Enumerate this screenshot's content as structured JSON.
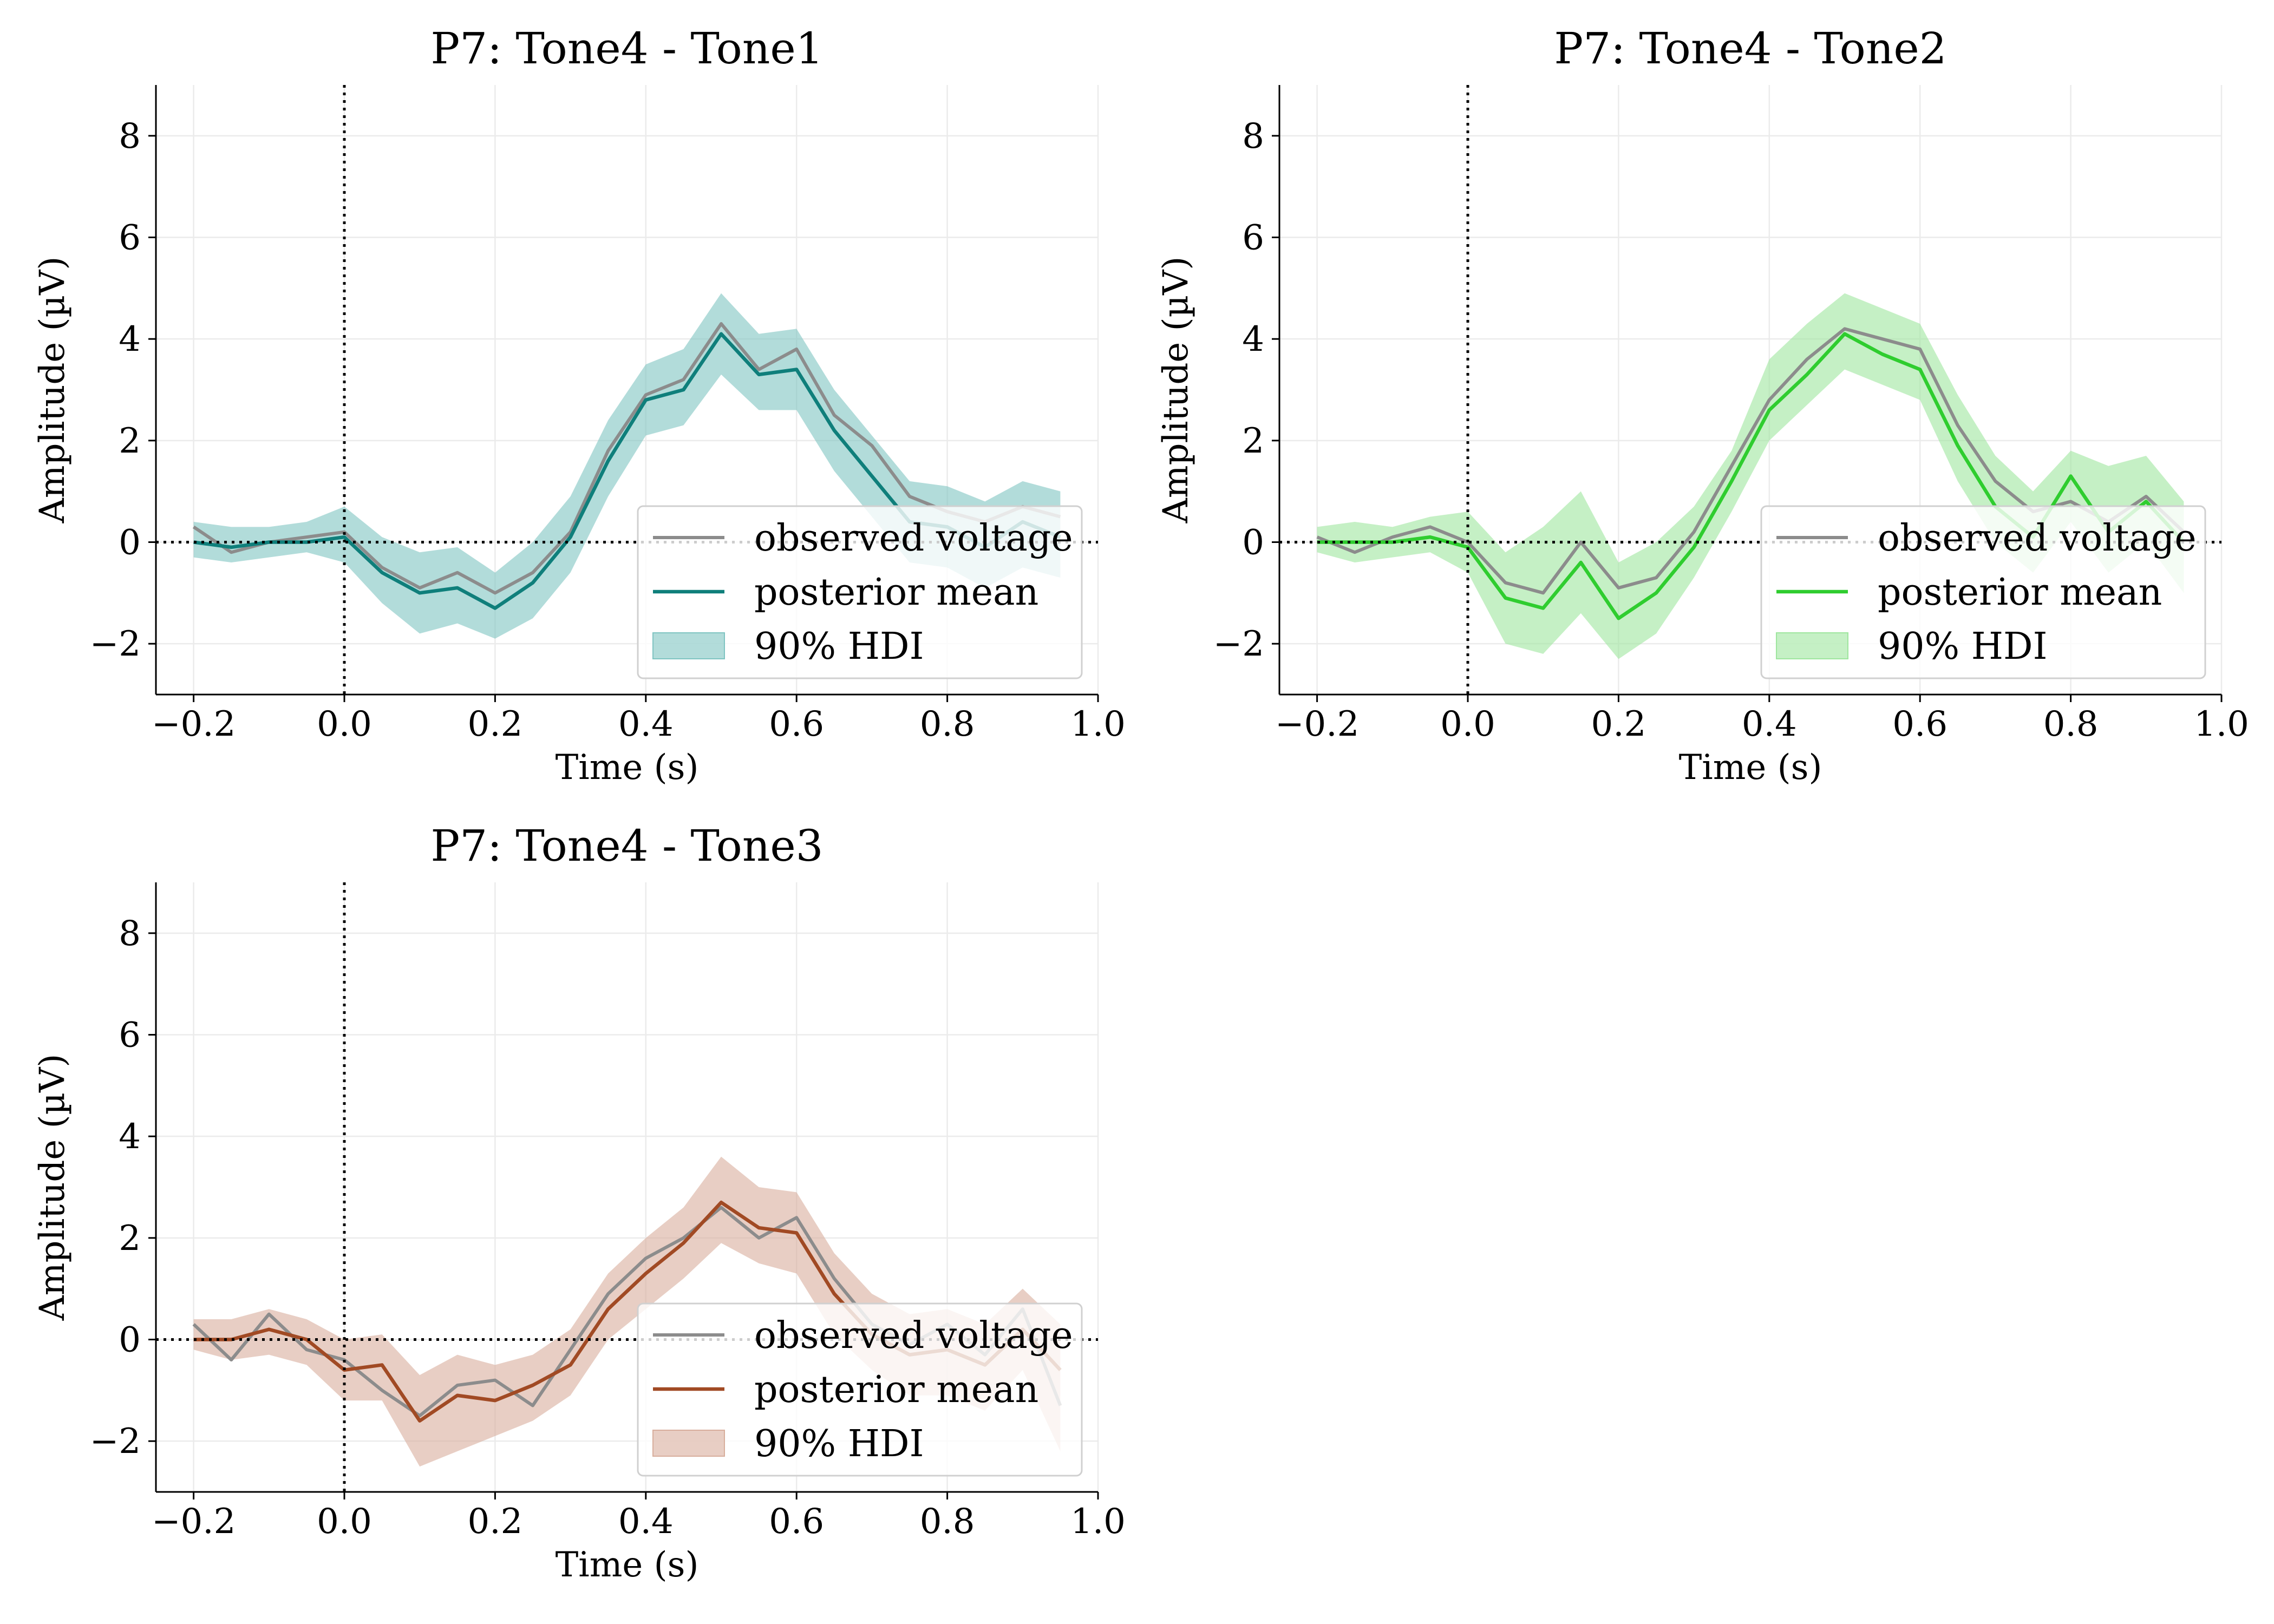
{
  "chart_data": [
    {
      "type": "line",
      "title": "P7: Tone4 - Tone1",
      "xlabel": "Time (s)",
      "ylabel": "Amplitude (µV)",
      "xlim": [
        -0.25,
        1.0
      ],
      "ylim": [
        -3,
        9
      ],
      "xticks": [
        -0.2,
        0.0,
        0.2,
        0.4,
        0.6,
        0.8,
        1.0
      ],
      "xtick_labels": [
        "−0.2",
        "0.0",
        "0.2",
        "0.4",
        "0.6",
        "0.8",
        "1.0"
      ],
      "yticks": [
        -2,
        0,
        2,
        4,
        6,
        8
      ],
      "ytick_labels": [
        "−2",
        "0",
        "2",
        "4",
        "6",
        "8"
      ],
      "grid": true,
      "legend_position": "lower-right",
      "reference_lines": {
        "horizontal_y": 0,
        "vertical_x": 0
      },
      "color": "#0f7f7b",
      "band_color": "#7fc4c2",
      "observed_color": "#8c8c8c",
      "legend": [
        "observed voltage",
        "posterior mean",
        "90% HDI"
      ],
      "x": [
        -0.2,
        -0.15,
        -0.1,
        -0.05,
        0.0,
        0.05,
        0.1,
        0.15,
        0.2,
        0.25,
        0.3,
        0.35,
        0.4,
        0.45,
        0.5,
        0.55,
        0.6,
        0.65,
        0.7,
        0.75,
        0.8,
        0.85,
        0.9,
        0.95
      ],
      "series": [
        {
          "name": "observed voltage",
          "values": [
            0.3,
            -0.2,
            0.0,
            0.1,
            0.2,
            -0.5,
            -0.9,
            -0.6,
            -1.0,
            -0.6,
            0.2,
            1.8,
            2.9,
            3.2,
            4.3,
            3.4,
            3.8,
            2.5,
            1.9,
            0.9,
            0.6,
            0.4,
            0.7,
            0.5
          ]
        },
        {
          "name": "posterior mean",
          "values": [
            0.0,
            -0.1,
            0.0,
            0.0,
            0.1,
            -0.6,
            -1.0,
            -0.9,
            -1.3,
            -0.8,
            0.1,
            1.6,
            2.8,
            3.0,
            4.1,
            3.3,
            3.4,
            2.2,
            1.3,
            0.4,
            0.3,
            -0.1,
            0.4,
            0.1
          ]
        }
      ],
      "hdi": {
        "name": "90% HDI",
        "lower": [
          -0.3,
          -0.4,
          -0.3,
          -0.2,
          -0.4,
          -1.2,
          -1.8,
          -1.6,
          -1.9,
          -1.5,
          -0.6,
          0.9,
          2.1,
          2.3,
          3.3,
          2.6,
          2.6,
          1.4,
          0.5,
          -0.4,
          -0.5,
          -0.9,
          -0.5,
          -0.7
        ],
        "upper": [
          0.4,
          0.3,
          0.3,
          0.4,
          0.7,
          0.1,
          -0.2,
          -0.1,
          -0.6,
          0.0,
          0.9,
          2.4,
          3.5,
          3.8,
          4.9,
          4.1,
          4.2,
          3.0,
          2.1,
          1.2,
          1.1,
          0.8,
          1.2,
          1.0
        ]
      }
    },
    {
      "type": "line",
      "title": "P7: Tone4 - Tone2",
      "xlabel": "Time (s)",
      "ylabel": "Amplitude (µV)",
      "xlim": [
        -0.25,
        1.0
      ],
      "ylim": [
        -3,
        9
      ],
      "xticks": [
        -0.2,
        0.0,
        0.2,
        0.4,
        0.6,
        0.8,
        1.0
      ],
      "xtick_labels": [
        "−0.2",
        "0.0",
        "0.2",
        "0.4",
        "0.6",
        "0.8",
        "1.0"
      ],
      "yticks": [
        -2,
        0,
        2,
        4,
        6,
        8
      ],
      "ytick_labels": [
        "−2",
        "0",
        "2",
        "4",
        "6",
        "8"
      ],
      "grid": true,
      "legend_position": "lower-right",
      "reference_lines": {
        "horizontal_y": 0,
        "vertical_x": 0
      },
      "color": "#2fcd2f",
      "band_color": "#9ee69e",
      "observed_color": "#8c8c8c",
      "legend": [
        "observed voltage",
        "posterior mean",
        "90% HDI"
      ],
      "x": [
        -0.2,
        -0.15,
        -0.1,
        -0.05,
        0.0,
        0.05,
        0.1,
        0.15,
        0.2,
        0.25,
        0.3,
        0.35,
        0.4,
        0.45,
        0.5,
        0.55,
        0.6,
        0.65,
        0.7,
        0.75,
        0.8,
        0.85,
        0.9,
        0.95
      ],
      "series": [
        {
          "name": "observed voltage",
          "values": [
            0.1,
            -0.2,
            0.1,
            0.3,
            0.0,
            -0.8,
            -1.0,
            0.0,
            -0.9,
            -0.7,
            0.2,
            1.5,
            2.8,
            3.6,
            4.2,
            4.0,
            3.8,
            2.3,
            1.2,
            0.6,
            0.8,
            0.4,
            0.9,
            0.2
          ]
        },
        {
          "name": "posterior mean",
          "values": [
            0.0,
            0.0,
            0.0,
            0.1,
            -0.1,
            -1.1,
            -1.3,
            -0.4,
            -1.5,
            -1.0,
            -0.1,
            1.2,
            2.6,
            3.3,
            4.1,
            3.7,
            3.4,
            1.9,
            0.7,
            0.1,
            1.3,
            0.2,
            0.8,
            0.0
          ]
        }
      ],
      "hdi": {
        "name": "90% HDI",
        "lower": [
          -0.2,
          -0.4,
          -0.3,
          -0.2,
          -0.6,
          -2.0,
          -2.2,
          -1.4,
          -2.3,
          -1.8,
          -0.7,
          0.6,
          2.0,
          2.7,
          3.4,
          3.1,
          2.8,
          1.2,
          0.0,
          -0.6,
          0.4,
          -0.6,
          0.0,
          -1.0
        ],
        "upper": [
          0.3,
          0.4,
          0.3,
          0.5,
          0.6,
          -0.2,
          0.3,
          1.0,
          -0.4,
          0.0,
          0.7,
          1.8,
          3.6,
          4.3,
          4.9,
          4.6,
          4.3,
          2.9,
          1.7,
          1.0,
          1.8,
          1.5,
          1.7,
          0.8
        ]
      }
    },
    {
      "type": "line",
      "title": "P7: Tone4 - Tone3",
      "xlabel": "Time (s)",
      "ylabel": "Amplitude (µV)",
      "xlim": [
        -0.25,
        1.0
      ],
      "ylim": [
        -3,
        9
      ],
      "xticks": [
        -0.2,
        0.0,
        0.2,
        0.4,
        0.6,
        0.8,
        1.0
      ],
      "xtick_labels": [
        "−0.2",
        "0.0",
        "0.2",
        "0.4",
        "0.6",
        "0.8",
        "1.0"
      ],
      "yticks": [
        -2,
        0,
        2,
        4,
        6,
        8
      ],
      "ytick_labels": [
        "−2",
        "0",
        "2",
        "4",
        "6",
        "8"
      ],
      "grid": true,
      "legend_position": "lower-right",
      "reference_lines": {
        "horizontal_y": 0,
        "vertical_x": 0
      },
      "color": "#a14a24",
      "band_color": "#d8ae9c",
      "observed_color": "#8c8c8c",
      "legend": [
        "observed voltage",
        "posterior mean",
        "90% HDI"
      ],
      "x": [
        -0.2,
        -0.15,
        -0.1,
        -0.05,
        0.0,
        0.05,
        0.1,
        0.15,
        0.2,
        0.25,
        0.3,
        0.35,
        0.4,
        0.45,
        0.5,
        0.55,
        0.6,
        0.65,
        0.7,
        0.75,
        0.8,
        0.85,
        0.9,
        0.95
      ],
      "series": [
        {
          "name": "observed voltage",
          "values": [
            0.3,
            -0.4,
            0.5,
            -0.2,
            -0.4,
            -1.0,
            -1.5,
            -0.9,
            -0.8,
            -1.3,
            -0.2,
            0.9,
            1.6,
            2.0,
            2.6,
            2.0,
            2.4,
            1.2,
            0.3,
            -0.1,
            0.3,
            -0.3,
            0.6,
            -1.3
          ]
        },
        {
          "name": "posterior mean",
          "values": [
            0.0,
            0.0,
            0.2,
            0.0,
            -0.6,
            -0.5,
            -1.6,
            -1.1,
            -1.2,
            -0.9,
            -0.5,
            0.6,
            1.3,
            1.9,
            2.7,
            2.2,
            2.1,
            0.9,
            0.1,
            -0.3,
            -0.2,
            -0.5,
            0.2,
            -0.6
          ]
        }
      ],
      "hdi": {
        "name": "90% HDI",
        "lower": [
          -0.2,
          -0.4,
          -0.3,
          -0.5,
          -1.2,
          -1.2,
          -2.5,
          -2.2,
          -1.9,
          -1.6,
          -1.1,
          0.0,
          0.6,
          1.2,
          1.9,
          1.5,
          1.3,
          0.1,
          -0.6,
          -1.1,
          -1.1,
          -1.4,
          -0.6,
          -2.2
        ],
        "upper": [
          0.4,
          0.4,
          0.6,
          0.4,
          0.0,
          0.1,
          -0.7,
          -0.3,
          -0.5,
          -0.3,
          0.2,
          1.3,
          2.0,
          2.6,
          3.6,
          3.0,
          2.9,
          1.7,
          0.9,
          0.5,
          0.6,
          0.3,
          1.0,
          0.3
        ]
      }
    }
  ]
}
